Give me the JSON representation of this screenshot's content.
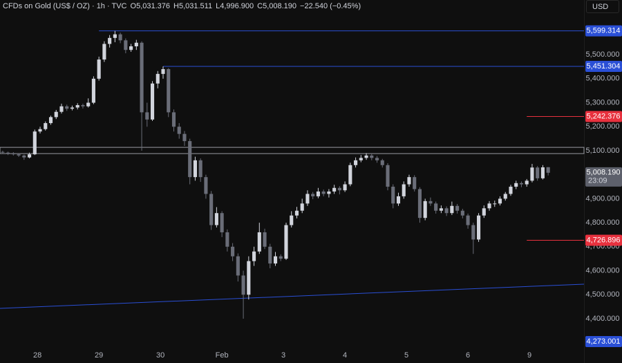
{
  "chart_data": {
    "type": "candlestick",
    "symbol": "CFDs on Gold (US$ / OZ) · 1h · TVC",
    "header": {
      "open": "O5,031.376",
      "high": "H5,031.511",
      "low": "L4,996.900",
      "close": "C5,008.190",
      "change": "−22.540 (−0.45%)"
    },
    "currency": "USD",
    "up_color": "#d1d4dc",
    "down_color": "#6a6d78",
    "xlim": [
      -0.5,
      108.7
    ],
    "xticks": [
      {
        "value": 6.5,
        "label": "28"
      },
      {
        "value": 18,
        "label": "29"
      },
      {
        "value": 29.5,
        "label": "30"
      },
      {
        "value": 41,
        "label": "Feb"
      },
      {
        "value": 52.5,
        "label": "3"
      },
      {
        "value": 64,
        "label": "4"
      },
      {
        "value": 75.5,
        "label": "5"
      },
      {
        "value": 87,
        "label": "6"
      },
      {
        "value": 98.5,
        "label": "9"
      }
    ],
    "ylim": [
      4273,
      5728
    ],
    "yticks": [
      {
        "value": 4400,
        "label": "4,400.000"
      },
      {
        "value": 4500,
        "label": "4,500.000"
      },
      {
        "value": 4600,
        "label": "4,600.000"
      },
      {
        "value": 4700,
        "label": "4,700.000"
      },
      {
        "value": 4800,
        "label": "4,800.000"
      },
      {
        "value": 4900,
        "label": "4,900.000"
      },
      {
        "value": 5000,
        "label": "5,000.000"
      },
      {
        "value": 5100,
        "label": "5,100.000"
      },
      {
        "value": 5200,
        "label": "5,200.000"
      },
      {
        "value": 5300,
        "label": "5,300.000"
      },
      {
        "value": 5400,
        "label": "5,400.000"
      },
      {
        "value": 5500,
        "label": "5,500.000"
      }
    ],
    "grid": false,
    "zone": [
      5088,
      5114
    ],
    "trendline": {
      "x": [
        -0.5,
        108.7
      ],
      "y": [
        4443,
        4544
      ],
      "color": "#2a4fd6"
    },
    "levels": [
      {
        "value": 5599.314,
        "label": "5,599.314",
        "color": "#2a4fd6",
        "from": 18
      },
      {
        "value": 5451.304,
        "label": "5,451.304",
        "color": "#2a4fd6",
        "from": 30
      },
      {
        "value": 5242.376,
        "label": "5,242.376",
        "color": "#e8313e",
        "from": 98
      },
      {
        "value": 4726.896,
        "label": "4,726.896",
        "color": "#e8313e",
        "from": 98
      },
      {
        "value": 4273.001,
        "label": "4,273.001",
        "color": "#2a4fd6"
      }
    ],
    "last_price": {
      "value": 5008.19,
      "label": "5,008.190",
      "countdown": "23:09"
    },
    "x": [
      0,
      1,
      2,
      3,
      4,
      5,
      6,
      7,
      8,
      9,
      10,
      11,
      12,
      13,
      14,
      15,
      16,
      17,
      18,
      19,
      20,
      21,
      22,
      23,
      24,
      25,
      26,
      27,
      28,
      29,
      30,
      31,
      32,
      33,
      34,
      35,
      36,
      37,
      38,
      39,
      40,
      41,
      42,
      43,
      44,
      45,
      46,
      47,
      48,
      49,
      50,
      51,
      52,
      53,
      54,
      55,
      56,
      57,
      58,
      59,
      60,
      61,
      62,
      63,
      64,
      65,
      66,
      67,
      68,
      69,
      70,
      71,
      72,
      73,
      74,
      75,
      76,
      77,
      78,
      79,
      80,
      81,
      82,
      83,
      84,
      85,
      86,
      87,
      88,
      89,
      90,
      91,
      92,
      93,
      94,
      95,
      96,
      97,
      98,
      99,
      100,
      101,
      102
    ],
    "ohlc": [
      [
        5095,
        5100,
        5086,
        5092
      ],
      [
        5092,
        5096,
        5082,
        5088
      ],
      [
        5088,
        5094,
        5080,
        5085
      ],
      [
        5085,
        5090,
        5074,
        5080
      ],
      [
        5080,
        5084,
        5062,
        5072
      ],
      [
        5072,
        5092,
        5068,
        5085
      ],
      [
        5085,
        5188,
        5082,
        5180
      ],
      [
        5180,
        5200,
        5172,
        5190
      ],
      [
        5190,
        5222,
        5184,
        5215
      ],
      [
        5215,
        5246,
        5208,
        5240
      ],
      [
        5240,
        5270,
        5232,
        5262
      ],
      [
        5262,
        5296,
        5255,
        5285
      ],
      [
        5285,
        5292,
        5266,
        5275
      ],
      [
        5275,
        5288,
        5268,
        5280
      ],
      [
        5280,
        5298,
        5272,
        5290
      ],
      [
        5290,
        5296,
        5276,
        5285
      ],
      [
        5285,
        5318,
        5280,
        5300
      ],
      [
        5300,
        5410,
        5294,
        5400
      ],
      [
        5400,
        5492,
        5392,
        5480
      ],
      [
        5480,
        5556,
        5470,
        5545
      ],
      [
        5545,
        5582,
        5530,
        5570
      ],
      [
        5570,
        5599.314,
        5552,
        5585
      ],
      [
        5585,
        5592,
        5548,
        5560
      ],
      [
        5560,
        5568,
        5506,
        5520
      ],
      [
        5520,
        5545,
        5512,
        5535
      ],
      [
        5535,
        5562,
        5520,
        5550
      ],
      [
        5550,
        5556,
        5100,
        5260
      ],
      [
        5260,
        5300,
        5200,
        5230
      ],
      [
        5230,
        5390,
        5224,
        5380
      ],
      [
        5380,
        5432,
        5360,
        5420
      ],
      [
        5420,
        5451.304,
        5400,
        5440
      ],
      [
        5440,
        5444,
        5240,
        5260
      ],
      [
        5260,
        5272,
        5180,
        5200
      ],
      [
        5200,
        5215,
        5150,
        5170
      ],
      [
        5170,
        5182,
        5120,
        5140
      ],
      [
        5140,
        5150,
        4960,
        4990
      ],
      [
        4990,
        5075,
        4975,
        5060
      ],
      [
        5060,
        5068,
        4970,
        4990
      ],
      [
        4990,
        5000,
        4900,
        4920
      ],
      [
        4920,
        4932,
        4770,
        4790
      ],
      [
        4790,
        4865,
        4780,
        4840
      ],
      [
        4840,
        4848,
        4740,
        4760
      ],
      [
        4760,
        4772,
        4680,
        4700
      ],
      [
        4700,
        4715,
        4640,
        4660
      ],
      [
        4660,
        4672,
        4555,
        4580
      ],
      [
        4580,
        4600,
        4400,
        4500
      ],
      [
        4500,
        4660,
        4480,
        4640
      ],
      [
        4640,
        4700,
        4620,
        4680
      ],
      [
        4680,
        4800,
        4670,
        4760
      ],
      [
        4760,
        4775,
        4690,
        4700
      ],
      [
        4700,
        4712,
        4610,
        4630
      ],
      [
        4630,
        4678,
        4620,
        4660
      ],
      [
        4660,
        4668,
        4640,
        4650
      ],
      [
        4650,
        4800,
        4645,
        4790
      ],
      [
        4790,
        4848,
        4780,
        4830
      ],
      [
        4830,
        4866,
        4818,
        4850
      ],
      [
        4850,
        4900,
        4840,
        4880
      ],
      [
        4880,
        4935,
        4870,
        4920
      ],
      [
        4920,
        4928,
        4898,
        4910
      ],
      [
        4910,
        4945,
        4902,
        4930
      ],
      [
        4930,
        4938,
        4910,
        4920
      ],
      [
        4920,
        4940,
        4905,
        4930
      ],
      [
        4930,
        4958,
        4920,
        4945
      ],
      [
        4945,
        4952,
        4918,
        4935
      ],
      [
        4935,
        4972,
        4928,
        4960
      ],
      [
        4960,
        5050,
        4952,
        5040
      ],
      [
        5040,
        5072,
        5030,
        5060
      ],
      [
        5060,
        5082,
        5052,
        5070
      ],
      [
        5070,
        5090,
        5062,
        5080
      ],
      [
        5080,
        5088,
        5060,
        5070
      ],
      [
        5070,
        5078,
        5050,
        5060
      ],
      [
        5060,
        5066,
        5030,
        5040
      ],
      [
        5040,
        5048,
        4935,
        4950
      ],
      [
        4950,
        4960,
        4860,
        4880
      ],
      [
        4880,
        4925,
        4870,
        4910
      ],
      [
        4910,
        4972,
        4900,
        4960
      ],
      [
        4960,
        5000,
        4950,
        4990
      ],
      [
        4990,
        4998,
        4930,
        4940
      ],
      [
        4940,
        4948,
        4800,
        4820
      ],
      [
        4820,
        4900,
        4810,
        4890
      ],
      [
        4890,
        4905,
        4870,
        4880
      ],
      [
        4880,
        4888,
        4838,
        4850
      ],
      [
        4850,
        4872,
        4840,
        4860
      ],
      [
        4860,
        4868,
        4828,
        4840
      ],
      [
        4840,
        4888,
        4832,
        4870
      ],
      [
        4870,
        4878,
        4838,
        4850
      ],
      [
        4850,
        4858,
        4818,
        4830
      ],
      [
        4830,
        4838,
        4775,
        4790
      ],
      [
        4790,
        4800,
        4670,
        4730
      ],
      [
        4730,
        4840,
        4720,
        4830
      ],
      [
        4830,
        4872,
        4820,
        4860
      ],
      [
        4860,
        4890,
        4850,
        4880
      ],
      [
        4880,
        4892,
        4866,
        4880
      ],
      [
        4880,
        4910,
        4872,
        4900
      ],
      [
        4900,
        4928,
        4892,
        4920
      ],
      [
        4920,
        4958,
        4912,
        4950
      ],
      [
        4950,
        4975,
        4940,
        4965
      ],
      [
        4965,
        4972,
        4948,
        4960
      ],
      [
        4960,
        4982,
        4950,
        4975
      ],
      [
        4975,
        5045,
        4968,
        5030
      ],
      [
        5030,
        5036,
        4975,
        4985
      ],
      [
        4985,
        5040,
        4980,
        5030.73
      ],
      [
        5031.376,
        5031.511,
        4996.9,
        5008.19
      ]
    ]
  }
}
